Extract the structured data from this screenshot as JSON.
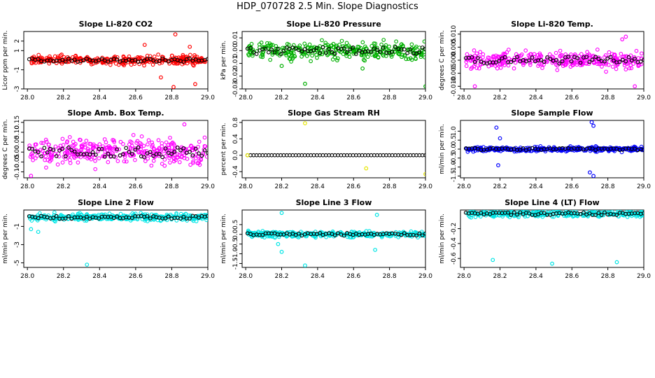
{
  "title": "HDP_070728  2.5 Min. Slope Diagnostics",
  "chart_data": [
    {
      "id": "co2",
      "type": "scatter",
      "title": "Slope Li-820 CO2",
      "ylabel": "Licor ppm per min.",
      "color": "#ff0000",
      "xlim": [
        27.98,
        29.0
      ],
      "ylim": [
        -3,
        3
      ],
      "xticks": [
        28.0,
        28.2,
        28.4,
        28.6,
        28.8,
        29.0
      ],
      "xtick_labels": [
        "28.0",
        "28.2",
        "28.4",
        "28.6",
        "28.8",
        "29.0"
      ],
      "yticks": [
        -3,
        -1,
        1,
        2
      ],
      "ytick_labels": [
        "-3",
        "-1",
        "1",
        "2"
      ],
      "spread": 0.4,
      "points_x": [
        28.82,
        28.81,
        28.93,
        28.74,
        28.65,
        28.9
      ],
      "points_y": [
        2.7,
        -2.8,
        -2.5,
        -1.8,
        1.6,
        1.4
      ]
    },
    {
      "id": "pressure",
      "type": "scatter",
      "title": "Slope Li-820 Pressure",
      "ylabel": "kPa per min.",
      "color": "#00b000",
      "xlim": [
        27.98,
        29.0
      ],
      "ylim": [
        -0.03,
        0.015
      ],
      "xticks": [
        28.0,
        28.2,
        28.4,
        28.6,
        28.8,
        29.0
      ],
      "xtick_labels": [
        "28.0",
        "28.2",
        "28.4",
        "28.6",
        "28.8",
        "29.0"
      ],
      "yticks": [
        -0.03,
        -0.02,
        -0.01,
        0.0,
        0.01
      ],
      "ytick_labels": [
        "-0.03",
        "-0.02",
        "-0.01",
        "0.00",
        "0.01"
      ],
      "spread": 0.006,
      "points_x": [
        28.33,
        29.0,
        28.65,
        28.2
      ],
      "points_y": [
        -0.026,
        -0.028,
        -0.014,
        -0.012
      ]
    },
    {
      "id": "temp",
      "type": "scatter",
      "title": "Slope Li-820 Temp.",
      "ylabel": "degrees C per min.",
      "color": "#ff00ff",
      "xlim": [
        27.98,
        29.0
      ],
      "ylim": [
        -0.011,
        0.011
      ],
      "xticks": [
        28.0,
        28.2,
        28.4,
        28.6,
        28.8,
        29.0
      ],
      "xtick_labels": [
        "28.0",
        "28.2",
        "28.4",
        "28.6",
        "28.8",
        "29.0"
      ],
      "yticks": [
        -0.01,
        -0.005,
        0.0,
        0.005,
        0.01
      ],
      "ytick_labels": [
        "-0.010",
        "-0.005",
        "0.000",
        "0.005",
        "0.010"
      ],
      "spread": 0.003,
      "points_x": [
        28.9,
        28.95,
        28.06,
        28.88
      ],
      "points_y": [
        0.009,
        -0.01,
        -0.01,
        0.008
      ]
    },
    {
      "id": "boxtemp",
      "type": "scatter",
      "title": "Slope Amb. Box Temp.",
      "ylabel": "degrees C per min.",
      "color": "#ff00ff",
      "xlim": [
        27.98,
        29.0
      ],
      "ylim": [
        -0.13,
        0.16
      ],
      "xticks": [
        28.0,
        28.2,
        28.4,
        28.6,
        28.8,
        29.0
      ],
      "xtick_labels": [
        "28.0",
        "28.2",
        "28.4",
        "28.6",
        "28.8",
        "29.0"
      ],
      "yticks": [
        -0.1,
        -0.05,
        0.0,
        0.05,
        0.1,
        0.15
      ],
      "ytick_labels": [
        "-0.10",
        "-0.05",
        "0.00",
        "0.05",
        "0.10",
        "0.15"
      ],
      "spread": 0.06,
      "points_x": [
        28.87,
        28.02
      ],
      "points_y": [
        0.14,
        -0.12
      ]
    },
    {
      "id": "rh",
      "type": "scatter",
      "title": "Slope Gas Stream RH",
      "ylabel": "percent per min.",
      "color": "#e6e600",
      "xlim": [
        27.98,
        29.0
      ],
      "ylim": [
        -0.55,
        0.85
      ],
      "xticks": [
        28.0,
        28.2,
        28.4,
        28.6,
        28.8,
        29.0
      ],
      "xtick_labels": [
        "28.0",
        "28.2",
        "28.4",
        "28.6",
        "28.8",
        "29.0"
      ],
      "yticks": [
        -0.4,
        0.0,
        0.4,
        0.8
      ],
      "ytick_labels": [
        "-0.4",
        "0.0",
        "0.4",
        "0.8"
      ],
      "spread": 0.0,
      "points_x": [
        28.33,
        28.67,
        29.0,
        28.01
      ],
      "points_y": [
        0.78,
        -0.32,
        -0.46,
        0.0
      ]
    },
    {
      "id": "sampleflow",
      "type": "scatter",
      "title": "Slope Sample Flow",
      "ylabel": "ml/min per min.",
      "color": "#0000ff",
      "xlim": [
        27.98,
        29.0
      ],
      "ylim": [
        -1.6,
        1.6
      ],
      "xticks": [
        28.0,
        28.2,
        28.4,
        28.6,
        28.8,
        29.0
      ],
      "xtick_labels": [
        "28.0",
        "28.2",
        "28.4",
        "28.6",
        "28.8",
        "29.0"
      ],
      "yticks": [
        -1.5,
        -1.0,
        -0.5,
        0.0,
        0.5,
        1.0
      ],
      "ytick_labels": [
        "-1.5",
        "-1.0",
        "-0.5",
        "0.0",
        "0.5",
        "1.0"
      ],
      "spread": 0.12,
      "points_x": [
        28.71,
        28.72,
        28.7,
        28.18,
        28.19,
        28.72,
        28.2
      ],
      "points_y": [
        1.5,
        1.3,
        -1.3,
        1.2,
        -0.9,
        -1.5,
        0.6
      ]
    },
    {
      "id": "line2",
      "type": "scatter",
      "title": "Slope Line 2 Flow",
      "ylabel": "ml/min per min.",
      "color": "#00e5e5",
      "xlim": [
        27.98,
        29.0
      ],
      "ylim": [
        -5.5,
        0.8
      ],
      "xticks": [
        28.0,
        28.2,
        28.4,
        28.6,
        28.8,
        29.0
      ],
      "xtick_labels": [
        "28.0",
        "28.2",
        "28.4",
        "28.6",
        "28.8",
        "29.0"
      ],
      "yticks": [
        -5,
        -3,
        -1
      ],
      "ytick_labels": [
        "-5",
        "-3",
        "-1"
      ],
      "spread": 0.35,
      "points_x": [
        28.33,
        28.06,
        28.02
      ],
      "points_y": [
        -5.2,
        -1.6,
        -1.3
      ]
    },
    {
      "id": "line3",
      "type": "scatter",
      "title": "Slope Line 3 Flow",
      "ylabel": "ml/min per min.",
      "color": "#00e5e5",
      "xlim": [
        27.98,
        29.0
      ],
      "ylim": [
        -1.7,
        1.25
      ],
      "xticks": [
        28.0,
        28.2,
        28.4,
        28.6,
        28.8,
        29.0
      ],
      "xtick_labels": [
        "28.0",
        "28.2",
        "28.4",
        "28.6",
        "28.8",
        "29.0"
      ],
      "yticks": [
        -1.5,
        -1.0,
        -0.5,
        0.0,
        0.5
      ],
      "ytick_labels": [
        "-1.5",
        "-1.0",
        "-0.5",
        "0.0",
        "0.5"
      ],
      "spread": 0.15,
      "points_x": [
        28.33,
        28.2,
        28.2,
        28.73,
        28.72,
        28.18
      ],
      "points_y": [
        -1.6,
        1.1,
        -0.9,
        1.0,
        -0.8,
        -0.5
      ]
    },
    {
      "id": "line4",
      "type": "scatter",
      "title": "Slope Line 4 (LT) Flow",
      "ylabel": "ml/min per min.",
      "color": "#00e5e5",
      "xlim": [
        27.98,
        29.0
      ],
      "ylim": [
        -0.72,
        0.05
      ],
      "xticks": [
        28.0,
        28.2,
        28.4,
        28.6,
        28.8,
        29.0
      ],
      "xtick_labels": [
        "28.0",
        "28.2",
        "28.4",
        "28.6",
        "28.8",
        "29.0"
      ],
      "yticks": [
        -0.6,
        -0.4,
        -0.2
      ],
      "ytick_labels": [
        "-0.6",
        "-0.4",
        "-0.2"
      ],
      "spread": 0.04,
      "points_x": [
        28.16,
        28.49,
        28.85
      ],
      "points_y": [
        -0.62,
        -0.67,
        -0.65
      ]
    }
  ]
}
